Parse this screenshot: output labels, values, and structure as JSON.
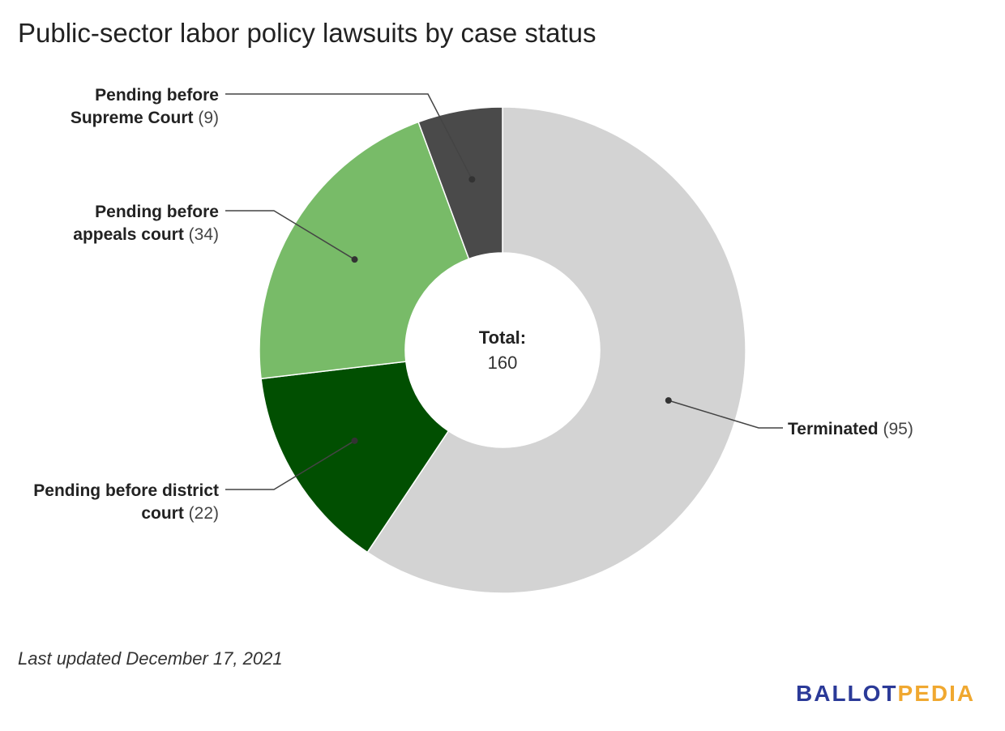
{
  "title": "Public-sector labor policy lawsuits by case status",
  "center_label": {
    "heading": "Total:",
    "value": "160"
  },
  "footnote": "Last updated December 17, 2021",
  "logo": {
    "part1": "BALLOT",
    "part2": "PEDIA"
  },
  "colors": {
    "accent1": "#2b3a98",
    "accent2": "#f0a830",
    "leader": "#444444"
  },
  "chart_data": {
    "type": "pie",
    "donut": true,
    "total": 160,
    "slices": [
      {
        "label": "Terminated",
        "value": 95,
        "value_text": "(95)",
        "color": "#d3d3d3",
        "label_lines": [
          "Terminated"
        ]
      },
      {
        "label": "Pending before district court",
        "value": 22,
        "value_text": "(22)",
        "color": "#014f01",
        "label_lines": [
          "Pending before district",
          "court"
        ]
      },
      {
        "label": "Pending before appeals court",
        "value": 34,
        "value_text": "(34)",
        "color": "#78bb68",
        "label_lines": [
          "Pending before",
          "appeals court"
        ]
      },
      {
        "label": "Pending before Supreme Court",
        "value": 9,
        "value_text": "(9)",
        "color": "#4a4a4a",
        "label_lines": [
          "Pending before",
          "Supreme Court"
        ]
      }
    ]
  }
}
